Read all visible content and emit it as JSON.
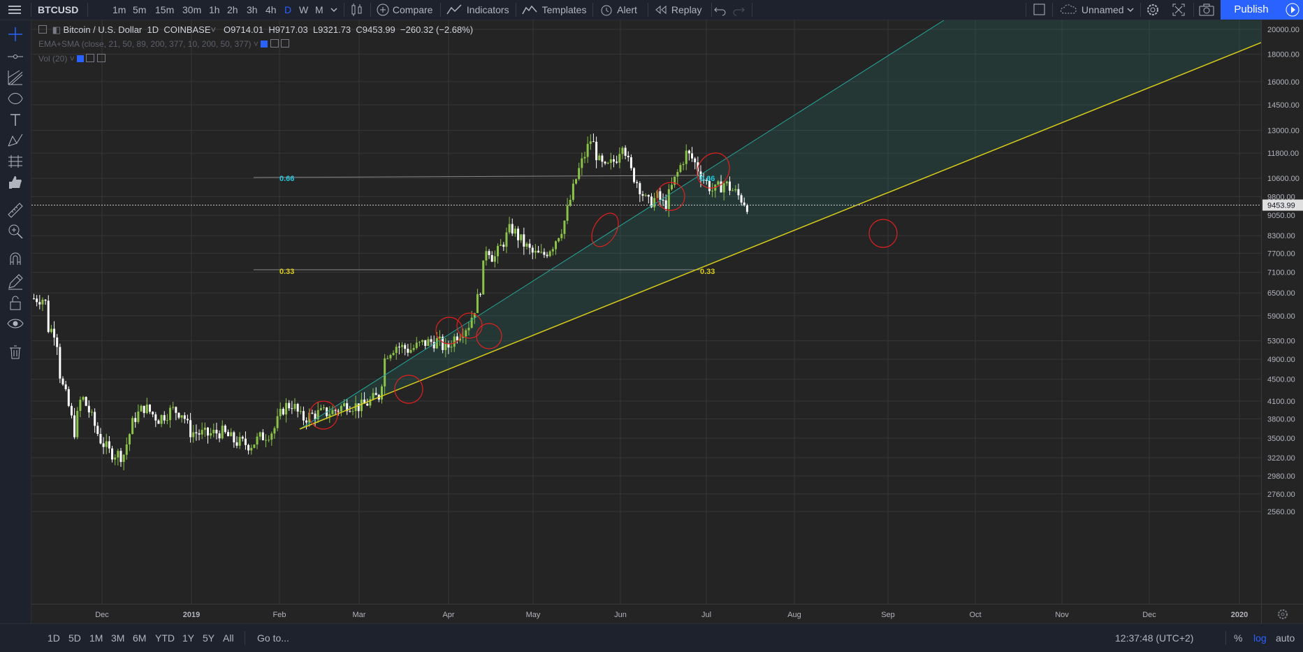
{
  "toolbar": {
    "symbol": "BTCUSD",
    "intervals": [
      "1m",
      "5m",
      "15m",
      "30m",
      "1h",
      "2h",
      "3h",
      "4h",
      "D",
      "W",
      "M"
    ],
    "active_interval": "D",
    "compare": "Compare",
    "indicators": "Indicators",
    "templates": "Templates",
    "alert": "Alert",
    "replay": "Replay",
    "layout_name": "Unnamed",
    "publish": "Publish"
  },
  "legend": {
    "title": "Bitcoin / U.S. Dollar",
    "interval": "1D",
    "exchange": "COINBASE",
    "open": "O9714.01",
    "high": "H9717.03",
    "low": "L9321.73",
    "close": "C9453.99",
    "change": "−260.32 (−2.68%)",
    "study": "EMA+SMA (close, 21, 50, 89, 200, 377, 10, 200, 50, 377)",
    "volume": "Vol (20)"
  },
  "fib_labels": {
    "a": "0.66",
    "b": "0.33"
  },
  "chart_data": {
    "type": "candlestick",
    "scale": "log",
    "last_price": "9453.99",
    "y_ticks": [
      "20000.00",
      "18000.00",
      "16000.00",
      "14500.00",
      "13000.00",
      "11800.00",
      "10600.00",
      "9800.00",
      "9050.00",
      "8300.00",
      "7700.00",
      "7100.00",
      "6500.00",
      "5900.00",
      "5300.00",
      "4900.00",
      "4500.00",
      "4100.00",
      "3800.00",
      "3500.00",
      "3220.00",
      "2980.00",
      "2760.00",
      "2560.00"
    ],
    "x_ticks": [
      "Dec",
      "2019",
      "Feb",
      "Mar",
      "Apr",
      "May",
      "Jun",
      "Jul",
      "Aug",
      "Sep",
      "Oct",
      "Nov",
      "Dec",
      "2020"
    ],
    "colors": {
      "up": "#8bc34a",
      "down": "#ffffff",
      "channel": "#26a69a",
      "support": "#d9cc1a",
      "marker": "#e02020"
    }
  },
  "bottom": {
    "ranges": [
      "1D",
      "5D",
      "1M",
      "3M",
      "6M",
      "YTD",
      "1Y",
      "5Y",
      "All"
    ],
    "goto": "Go to...",
    "clock": "12:37:48 (UTC+2)",
    "percent": "%",
    "log": "log",
    "auto": "auto"
  }
}
